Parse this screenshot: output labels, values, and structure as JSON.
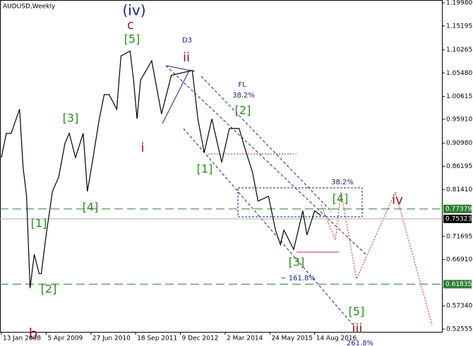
{
  "chart_data": {
    "type": "line",
    "title": "AUDUSD,Weekly",
    "color": "#000000",
    "x": [
      "2008-01-13",
      "2008-03-02",
      "2008-04-20",
      "2008-07-13",
      "2008-08-17",
      "2008-09-21",
      "2008-10-26",
      "2008-12-07",
      "2009-01-25",
      "2009-02-15",
      "2009-04-05",
      "2009-06-07",
      "2009-08-09",
      "2009-10-11",
      "2009-11-22",
      "2010-01-24",
      "2010-04-11",
      "2010-05-23",
      "2010-07-11",
      "2010-09-19",
      "2010-11-07",
      "2010-12-26",
      "2011-03-13",
      "2011-04-24",
      "2011-07-24",
      "2011-08-28",
      "2011-10-02",
      "2011-11-06",
      "2012-02-26",
      "2012-06-03",
      "2012-09-09",
      "2013-04-07",
      "2013-06-02",
      "2013-08-04",
      "2013-10-20",
      "2014-01-26",
      "2014-04-13",
      "2014-07-20",
      "2014-09-14",
      "2014-11-30",
      "2015-01-25",
      "2015-05-10",
      "2015-07-19",
      "2015-09-06",
      "2015-10-11",
      "2016-01-17",
      "2016-04-17",
      "2016-05-29",
      "2016-08-14",
      "2016-10-16"
    ],
    "values": [
      0.88,
      0.93,
      0.93,
      0.98,
      0.86,
      0.8,
      0.61,
      0.68,
      0.64,
      0.64,
      0.72,
      0.81,
      0.84,
      0.91,
      0.93,
      0.88,
      0.93,
      0.81,
      0.87,
      0.96,
      1.01,
      1.01,
      0.98,
      1.09,
      1.1,
      1.04,
      0.96,
      1.04,
      1.08,
      0.97,
      1.05,
      1.06,
      0.96,
      0.89,
      0.96,
      0.87,
      0.94,
      0.94,
      0.9,
      0.85,
      0.79,
      0.8,
      0.73,
      0.7,
      0.73,
      0.69,
      0.77,
      0.72,
      0.77,
      0.76
    ],
    "xlim": [
      "2007-12-30",
      "2020-02-09"
    ],
    "xticks": [
      {
        "value": "2008-01-13",
        "label": "13 Jan 2008"
      },
      {
        "value": "2009-04-05",
        "label": "5 Apr 2009"
      },
      {
        "value": "2010-06-27",
        "label": "27 Jun 2010"
      },
      {
        "value": "2011-09-18",
        "label": "18 Sep 2011"
      },
      {
        "value": "2012-12-09",
        "label": "9 Dec 2012"
      },
      {
        "value": "2014-03-02",
        "label": "2 Mar 2014"
      },
      {
        "value": "2015-05-24",
        "label": "24 May 2015"
      },
      {
        "value": "2016-08-14",
        "label": "14 Aug 2016"
      }
    ],
    "ylim": [
      0.5197,
      1.2056
    ],
    "yticks": [
      {
        "value": 1.1998,
        "label": "1.19980"
      },
      1.15195,
      1.10265,
      {
        "value": 1.0548,
        "label": "1.05480"
      },
      1.00615,
      {
        "value": 0.9591,
        "label": "0.95910"
      },
      {
        "value": 0.9098,
        "label": "0.90980"
      },
      0.86195,
      {
        "value": 0.8141,
        "label": "0.81410"
      },
      0.71695,
      {
        "value": 0.6691,
        "label": "0.66910"
      },
      {
        "value": 0.5734,
        "label": "0.57340"
      },
      0.52555
    ],
    "levels": [
      {
        "value": 0.77379,
        "color": "#2e7d32",
        "style": "dashed"
      },
      {
        "value": 0.75323,
        "color": "#000000",
        "style": "current"
      },
      {
        "value": 0.61835,
        "color": "#2e7d32",
        "style": "dashed"
      }
    ],
    "annotations": [
      {
        "text": "(iv)",
        "color": "#1a237e"
      },
      {
        "text": "c",
        "color": "#8b1a1a"
      },
      {
        "text": "[5]",
        "color": "#2e8b22"
      },
      {
        "text": "D3",
        "color": "#1a237e"
      },
      {
        "text": "ii",
        "color": "#8b1a1a"
      },
      {
        "text": "FL",
        "color": "#1a237e"
      },
      {
        "text": "38.2%",
        "color": "#1a237e"
      },
      {
        "text": "[2]",
        "color": "#2e8b22"
      },
      {
        "text": "[3]",
        "color": "#2e8b22"
      },
      {
        "text": "i",
        "color": "#8b1a1a"
      },
      {
        "text": "[1]",
        "color": "#2e8b22"
      },
      {
        "text": "38.2%",
        "color": "#1a237e"
      },
      {
        "text": "[4]",
        "color": "#2e8b22"
      },
      {
        "text": "iv",
        "color": "#8b1a1a"
      },
      {
        "text": "[4]",
        "color": "#2e8b22"
      },
      {
        "text": "[1]",
        "color": "#2e8b22"
      },
      {
        "text": "[3]",
        "color": "#2e8b22"
      },
      {
        "text": "~ 161.8%",
        "color": "#1a237e"
      },
      {
        "text": "[2]",
        "color": "#2e8b22"
      },
      {
        "text": "[5]",
        "color": "#2e8b22"
      },
      {
        "text": "b",
        "color": "#8b1a1a"
      },
      {
        "text": "iii",
        "color": "#8b1a1a"
      },
      {
        "text": "261.8%",
        "color": "#1a237e"
      }
    ]
  }
}
